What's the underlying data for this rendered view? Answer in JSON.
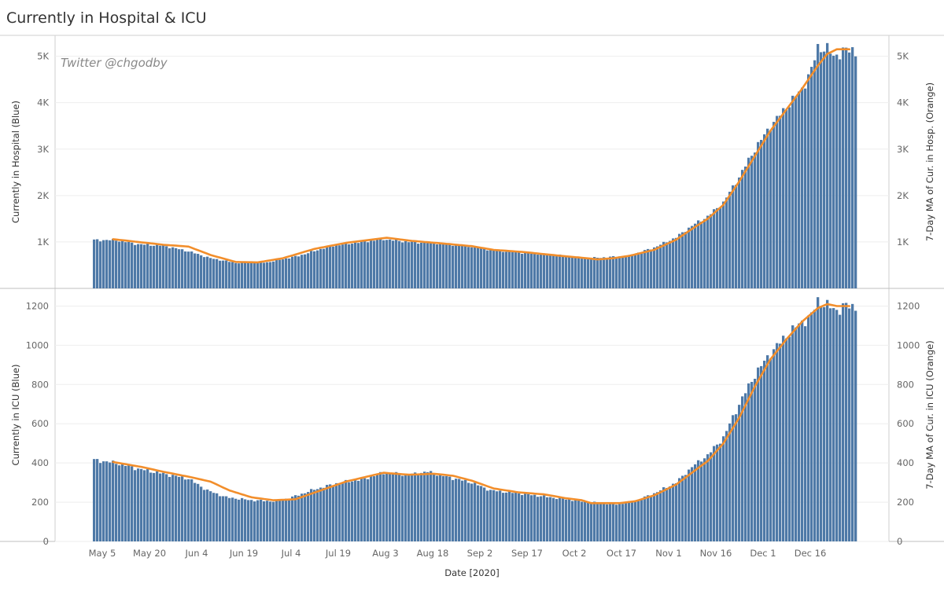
{
  "page": {
    "title": "Currently in Hospital & ICU"
  },
  "chart_data": {
    "type": "bar",
    "xlabel": "Date [2020]",
    "x_ticks": [
      "May 5",
      "May 20",
      "Jun 4",
      "Jun 19",
      "Jul 4",
      "Jul 19",
      "Aug 3",
      "Aug 18",
      "Sep 2",
      "Sep 17",
      "Oct 2",
      "Oct 17",
      "Nov 1",
      "Nov 16",
      "Dec 1",
      "Dec 16"
    ],
    "start_date": "May 5",
    "watermark": "Twitter @chgodby",
    "panels": [
      {
        "name": "hospital",
        "ylabel_left": "Currently in Hospital (Blue)",
        "ylabel_right": "7-Day MA of Cur. in Hosp. (Orange)",
        "ylim": [
          0,
          5450
        ],
        "y_ticks": [
          1000,
          2000,
          3000,
          4000,
          5000
        ],
        "y_tick_labels": [
          "1K",
          "2K",
          "3K",
          "4K",
          "5K"
        ],
        "bar_color": "#4e79a7",
        "line_color": "#f28e2b",
        "series": [
          {
            "name": "Currently in Hospital",
            "anchors": [
              [
                0,
                1040
              ],
              [
                7,
                1040
              ],
              [
                14,
                950
              ],
              [
                22,
                920
              ],
              [
                30,
                800
              ],
              [
                37,
                650
              ],
              [
                45,
                550
              ],
              [
                55,
                560
              ],
              [
                65,
                700
              ],
              [
                75,
                910
              ],
              [
                85,
                1000
              ],
              [
                92,
                1060
              ],
              [
                100,
                1000
              ],
              [
                112,
                960
              ],
              [
                120,
                900
              ],
              [
                127,
                820
              ],
              [
                137,
                760
              ],
              [
                147,
                720
              ],
              [
                155,
                650
              ],
              [
                160,
                660
              ],
              [
                165,
                680
              ],
              [
                170,
                700
              ],
              [
                178,
                880
              ],
              [
                185,
                1100
              ],
              [
                190,
                1350
              ],
              [
                195,
                1550
              ],
              [
                200,
                1850
              ],
              [
                205,
                2400
              ],
              [
                210,
                3000
              ],
              [
                215,
                3500
              ],
              [
                220,
                3900
              ],
              [
                225,
                4300
              ],
              [
                228,
                4700
              ],
              [
                230,
                5200
              ],
              [
                233,
                5150
              ],
              [
                235,
                5000
              ],
              [
                238,
                5100
              ],
              [
                241,
                5150
              ],
              [
                242,
                5100
              ]
            ]
          },
          {
            "name": "7-Day MA",
            "anchors": [
              [
                6,
                1060
              ],
              [
                14,
                1000
              ],
              [
                22,
                940
              ],
              [
                30,
                900
              ],
              [
                37,
                720
              ],
              [
                45,
                570
              ],
              [
                52,
                560
              ],
              [
                60,
                650
              ],
              [
                70,
                850
              ],
              [
                80,
                980
              ],
              [
                93,
                1090
              ],
              [
                100,
                1030
              ],
              [
                112,
                960
              ],
              [
                120,
                910
              ],
              [
                127,
                830
              ],
              [
                137,
                780
              ],
              [
                147,
                710
              ],
              [
                155,
                660
              ],
              [
                160,
                625
              ],
              [
                165,
                650
              ],
              [
                170,
                700
              ],
              [
                178,
                830
              ],
              [
                185,
                1050
              ],
              [
                190,
                1280
              ],
              [
                195,
                1500
              ],
              [
                200,
                1800
              ],
              [
                205,
                2300
              ],
              [
                210,
                2850
              ],
              [
                215,
                3400
              ],
              [
                220,
                3850
              ],
              [
                225,
                4300
              ],
              [
                230,
                4800
              ],
              [
                233,
                5050
              ],
              [
                236,
                5150
              ],
              [
                240,
                5150
              ]
            ]
          }
        ]
      },
      {
        "name": "icu",
        "ylabel_left": "Currently in ICU (Blue)",
        "ylabel_right": "7-Day MA of Cur. in ICU (Orange)",
        "ylim": [
          0,
          1290
        ],
        "y_ticks": [
          0,
          200,
          400,
          600,
          800,
          1000,
          1200
        ],
        "y_tick_labels": [
          "0",
          "200",
          "400",
          "600",
          "800",
          "1000",
          "1200"
        ],
        "bar_color": "#4e79a7",
        "line_color": "#f28e2b",
        "series": [
          {
            "name": "Currently in ICU",
            "anchors": [
              [
                0,
                415
              ],
              [
                7,
                400
              ],
              [
                14,
                370
              ],
              [
                22,
                345
              ],
              [
                30,
                320
              ],
              [
                36,
                260
              ],
              [
                42,
                225
              ],
              [
                50,
                210
              ],
              [
                57,
                205
              ],
              [
                62,
                220
              ],
              [
                70,
                265
              ],
              [
                78,
                300
              ],
              [
                85,
                315
              ],
              [
                92,
                350
              ],
              [
                100,
                340
              ],
              [
                106,
                355
              ],
              [
                112,
                330
              ],
              [
                120,
                300
              ],
              [
                126,
                260
              ],
              [
                135,
                245
              ],
              [
                145,
                225
              ],
              [
                155,
                205
              ],
              [
                160,
                195
              ],
              [
                167,
                190
              ],
              [
                172,
                205
              ],
              [
                178,
                245
              ],
              [
                185,
                300
              ],
              [
                190,
                380
              ],
              [
                195,
                440
              ],
              [
                200,
                530
              ],
              [
                205,
                700
              ],
              [
                210,
                850
              ],
              [
                215,
                960
              ],
              [
                220,
                1050
              ],
              [
                225,
                1120
              ],
              [
                228,
                1150
              ],
              [
                230,
                1230
              ],
              [
                233,
                1200
              ],
              [
                236,
                1180
              ],
              [
                239,
                1200
              ],
              [
                242,
                1200
              ]
            ]
          },
          {
            "name": "7-Day MA",
            "anchors": [
              [
                6,
                405
              ],
              [
                15,
                380
              ],
              [
                22,
                355
              ],
              [
                30,
                330
              ],
              [
                37,
                305
              ],
              [
                43,
                260
              ],
              [
                50,
                225
              ],
              [
                57,
                210
              ],
              [
                64,
                215
              ],
              [
                72,
                260
              ],
              [
                80,
                305
              ],
              [
                92,
                350
              ],
              [
                100,
                340
              ],
              [
                108,
                345
              ],
              [
                114,
                335
              ],
              [
                120,
                310
              ],
              [
                127,
                270
              ],
              [
                135,
                250
              ],
              [
                143,
                240
              ],
              [
                150,
                220
              ],
              [
                155,
                210
              ],
              [
                158,
                195
              ],
              [
                162,
                195
              ],
              [
                167,
                195
              ],
              [
                172,
                205
              ],
              [
                178,
                235
              ],
              [
                185,
                290
              ],
              [
                190,
                350
              ],
              [
                195,
                410
              ],
              [
                200,
                500
              ],
              [
                205,
                630
              ],
              [
                210,
                790
              ],
              [
                215,
                930
              ],
              [
                220,
                1030
              ],
              [
                225,
                1120
              ],
              [
                230,
                1190
              ],
              [
                233,
                1210
              ],
              [
                236,
                1200
              ],
              [
                240,
                1200
              ]
            ]
          }
        ]
      }
    ]
  }
}
